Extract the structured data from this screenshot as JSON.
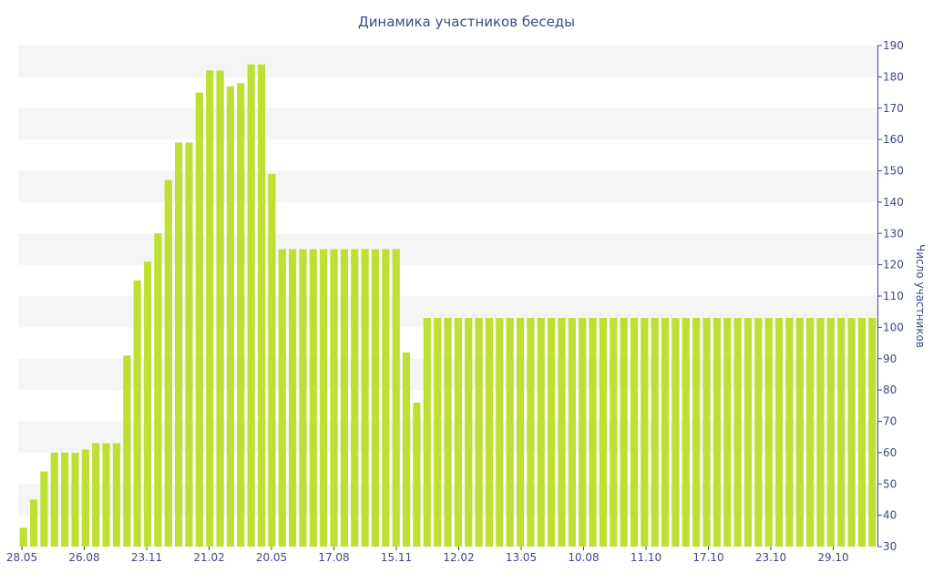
{
  "chart_data": {
    "type": "bar",
    "title": "Динамика участников беседы",
    "ylabel": "Число участников",
    "ylim": [
      30,
      190
    ],
    "ytick_step": 10,
    "grid": "horizontal bands",
    "y_axis_side": "right",
    "bar_color": "#bde033",
    "band_color": "#f5f5f5",
    "x_tick_labels": [
      "28.05",
      "26.08",
      "23.11",
      "21.02",
      "20.05",
      "17.08",
      "15.11",
      "12.02",
      "13.05",
      "10.08",
      "11.10",
      "17.10",
      "23.10",
      "29.10"
    ],
    "values": [
      36,
      45,
      54,
      60,
      60,
      60,
      61,
      63,
      63,
      63,
      91,
      115,
      121,
      130,
      147,
      159,
      159,
      175,
      182,
      182,
      177,
      178,
      184,
      184,
      149,
      125,
      125,
      125,
      125,
      125,
      125,
      125,
      125,
      125,
      125,
      125,
      125,
      92,
      76,
      103,
      103,
      103,
      103,
      103,
      103,
      103,
      103,
      103,
      103,
      103,
      103,
      103,
      103,
      103,
      103,
      103,
      103,
      103,
      103,
      103,
      103,
      103,
      103,
      103,
      103,
      103,
      103,
      103,
      103,
      103,
      103,
      103,
      103,
      103,
      103,
      103,
      103,
      103,
      103,
      103,
      103,
      103,
      103
    ]
  }
}
